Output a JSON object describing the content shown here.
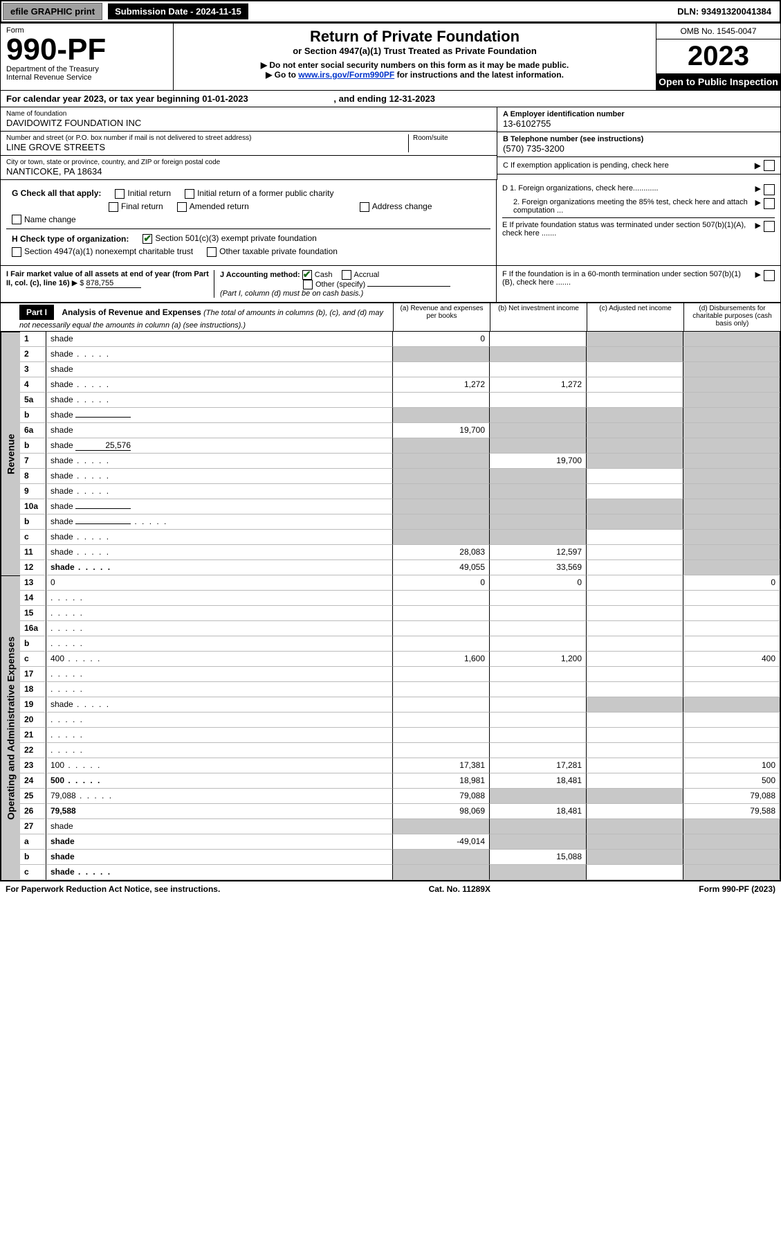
{
  "toolbar": {
    "efile_btn": "efile GRAPHIC print",
    "submission_label": "Submission Date - 2024-11-15",
    "dln": "DLN: 93491320041384"
  },
  "header": {
    "form_label": "Form",
    "form_no": "990-PF",
    "dept": "Department of the Treasury",
    "irs": "Internal Revenue Service",
    "title": "Return of Private Foundation",
    "subtitle": "or Section 4947(a)(1) Trust Treated as Private Foundation",
    "note1": "▶ Do not enter social security numbers on this form as it may be made public.",
    "note2_pre": "▶ Go to ",
    "note2_link": "www.irs.gov/Form990PF",
    "note2_post": " for instructions and the latest information.",
    "omb": "OMB No. 1545-0047",
    "year": "2023",
    "open": "Open to Public Inspection"
  },
  "calyear": {
    "pre": "For calendar year 2023, or tax year beginning ",
    "begin": "01-01-2023",
    "mid": " , and ending ",
    "end": "12-31-2023"
  },
  "info": {
    "name_lbl": "Name of foundation",
    "name": "DAVIDOWITZ FOUNDATION INC",
    "street_lbl": "Number and street (or P.O. box number if mail is not delivered to street address)",
    "street": "LINE GROVE STREETS",
    "room_lbl": "Room/suite",
    "room": "",
    "city_lbl": "City or town, state or province, country, and ZIP or foreign postal code",
    "city": "NANTICOKE, PA  18634",
    "A_lbl": "A Employer identification number",
    "A_val": "13-6102755",
    "B_lbl": "B Telephone number (see instructions)",
    "B_val": "(570) 735-3200",
    "C_lbl": "C If exemption application is pending, check here",
    "D1_lbl": "D 1. Foreign organizations, check here............",
    "D2_lbl": "2. Foreign organizations meeting the 85% test, check here and attach computation ...",
    "E_lbl": "E  If private foundation status was terminated under section 507(b)(1)(A), check here .......",
    "F_lbl": "F  If the foundation is in a 60-month termination under section 507(b)(1)(B), check here .......",
    "G_lbl": "G Check all that apply:",
    "G_opts": [
      "Initial return",
      "Initial return of a former public charity",
      "Final return",
      "Amended return",
      "Address change",
      "Name change"
    ],
    "H_lbl": "H Check type of organization:",
    "H_opts": [
      "Section 501(c)(3) exempt private foundation",
      "Section 4947(a)(1) nonexempt charitable trust",
      "Other taxable private foundation"
    ],
    "I_lbl": "I Fair market value of all assets at end of year (from Part II, col. (c), line 16)",
    "I_val": "878,755",
    "J_lbl": "J Accounting method:",
    "J_opts": [
      "Cash",
      "Accrual",
      "Other (specify)"
    ],
    "J_note": "(Part I, column (d) must be on cash basis.)"
  },
  "part1": {
    "label": "Part I",
    "title": "Analysis of Revenue and Expenses",
    "title_note": "(The total of amounts in columns (b), (c), and (d) may not necessarily equal the amounts in column (a) (see instructions).)",
    "col_a": "(a)  Revenue and expenses per books",
    "col_b": "(b)  Net investment income",
    "col_c": "(c)  Adjusted net income",
    "col_d": "(d)  Disbursements for charitable purposes (cash basis only)",
    "side_rev": "Revenue",
    "side_exp": "Operating and Administrative Expenses"
  },
  "rows": [
    {
      "n": "1",
      "d": "shade",
      "a": "0",
      "b": "",
      "c": "shade"
    },
    {
      "n": "2",
      "d": "shade",
      "a": "shade",
      "b": "shade",
      "c": "shade",
      "dot": true
    },
    {
      "n": "3",
      "d": "shade",
      "a": "",
      "b": "",
      "c": ""
    },
    {
      "n": "4",
      "d": "shade",
      "a": "1,272",
      "b": "1,272",
      "c": "",
      "dot": true
    },
    {
      "n": "5a",
      "d": "shade",
      "a": "",
      "b": "",
      "c": "",
      "dot": true
    },
    {
      "n": "b",
      "d": "shade",
      "a": "shade",
      "b": "shade",
      "c": "shade",
      "inline": ""
    },
    {
      "n": "6a",
      "d": "shade",
      "a": "19,700",
      "b": "shade",
      "c": "shade"
    },
    {
      "n": "b",
      "d": "shade",
      "a": "shade",
      "b": "shade",
      "c": "shade",
      "inline": "25,576"
    },
    {
      "n": "7",
      "d": "shade",
      "a": "shade",
      "b": "19,700",
      "c": "shade",
      "dot": true
    },
    {
      "n": "8",
      "d": "shade",
      "a": "shade",
      "b": "shade",
      "c": "",
      "dot": true
    },
    {
      "n": "9",
      "d": "shade",
      "a": "shade",
      "b": "shade",
      "c": "",
      "dot": true
    },
    {
      "n": "10a",
      "d": "shade",
      "a": "shade",
      "b": "shade",
      "c": "shade",
      "inline": ""
    },
    {
      "n": "b",
      "d": "shade",
      "a": "shade",
      "b": "shade",
      "c": "shade",
      "inline": "",
      "dot": true
    },
    {
      "n": "c",
      "d": "shade",
      "a": "shade",
      "b": "shade",
      "c": "",
      "dot": true
    },
    {
      "n": "11",
      "d": "shade",
      "a": "28,083",
      "b": "12,597",
      "c": "",
      "dot": true
    },
    {
      "n": "12",
      "d": "shade",
      "a": "49,055",
      "b": "33,569",
      "c": "",
      "bold": true,
      "dot": true
    },
    {
      "n": "13",
      "d": "0",
      "a": "0",
      "b": "0",
      "c": ""
    },
    {
      "n": "14",
      "d": "",
      "a": "",
      "b": "",
      "c": "",
      "dot": true
    },
    {
      "n": "15",
      "d": "",
      "a": "",
      "b": "",
      "c": "",
      "dot": true
    },
    {
      "n": "16a",
      "d": "",
      "a": "",
      "b": "",
      "c": "",
      "dot": true
    },
    {
      "n": "b",
      "d": "",
      "a": "",
      "b": "",
      "c": "",
      "dot": true
    },
    {
      "n": "c",
      "d": "400",
      "a": "1,600",
      "b": "1,200",
      "c": "",
      "dot": true
    },
    {
      "n": "17",
      "d": "",
      "a": "",
      "b": "",
      "c": "",
      "dot": true
    },
    {
      "n": "18",
      "d": "",
      "a": "",
      "b": "",
      "c": "",
      "dot": true
    },
    {
      "n": "19",
      "d": "shade",
      "a": "",
      "b": "",
      "c": "shade",
      "dot": true
    },
    {
      "n": "20",
      "d": "",
      "a": "",
      "b": "",
      "c": "",
      "dot": true
    },
    {
      "n": "21",
      "d": "",
      "a": "",
      "b": "",
      "c": "",
      "dot": true
    },
    {
      "n": "22",
      "d": "",
      "a": "",
      "b": "",
      "c": "",
      "dot": true
    },
    {
      "n": "23",
      "d": "100",
      "a": "17,381",
      "b": "17,281",
      "c": "",
      "dot": true
    },
    {
      "n": "24",
      "d": "500",
      "a": "18,981",
      "b": "18,481",
      "c": "",
      "bold": true,
      "dot": true
    },
    {
      "n": "25",
      "d": "79,088",
      "a": "79,088",
      "b": "shade",
      "c": "shade",
      "dot": true
    },
    {
      "n": "26",
      "d": "79,588",
      "a": "98,069",
      "b": "18,481",
      "c": "",
      "bold": true
    },
    {
      "n": "27",
      "d": "shade",
      "a": "shade",
      "b": "shade",
      "c": "shade"
    },
    {
      "n": "a",
      "d": "shade",
      "a": "-49,014",
      "b": "shade",
      "c": "shade",
      "bold": true
    },
    {
      "n": "b",
      "d": "shade",
      "a": "shade",
      "b": "15,088",
      "c": "shade",
      "bold": true
    },
    {
      "n": "c",
      "d": "shade",
      "a": "shade",
      "b": "shade",
      "c": "",
      "bold": true,
      "dot": true
    }
  ],
  "footer": {
    "left": "For Paperwork Reduction Act Notice, see instructions.",
    "mid": "Cat. No. 11289X",
    "right": "Form 990-PF (2023)"
  },
  "colors": {
    "shade": "#c8c8c8",
    "black": "#000000",
    "link": "#0033cc",
    "check": "#1a6b1a"
  }
}
